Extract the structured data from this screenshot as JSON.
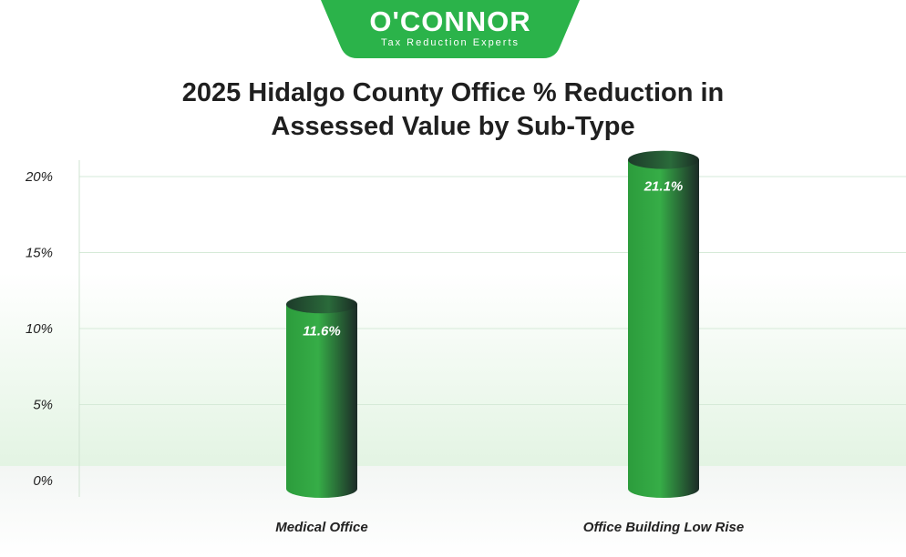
{
  "brand": {
    "name": "O'CONNOR",
    "tagline": "Tax Reduction Experts",
    "color": "#2bb34a"
  },
  "chart_data": {
    "type": "bar",
    "title": "2025 Hidalgo County Office % Reduction in Assessed Value by Sub-Type",
    "title_lines": [
      "2025 Hidalgo County Office % Reduction in",
      "Assessed Value by Sub-Type"
    ],
    "categories": [
      "Medical Office",
      "Office Building Low Rise"
    ],
    "values": [
      11.6,
      21.1
    ],
    "value_labels": [
      "11.6%",
      "21.1%"
    ],
    "yticks": [
      "0%",
      "5%",
      "10%",
      "15%",
      "20%"
    ],
    "ylim": [
      0,
      20
    ],
    "grid": true,
    "bar_colors": [
      "#35a845",
      "#1c2a27"
    ]
  }
}
